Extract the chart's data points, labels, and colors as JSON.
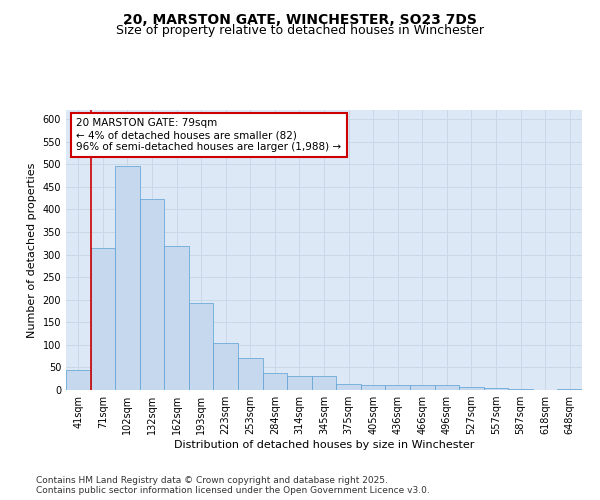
{
  "title_line1": "20, MARSTON GATE, WINCHESTER, SO23 7DS",
  "title_line2": "Size of property relative to detached houses in Winchester",
  "xlabel": "Distribution of detached houses by size in Winchester",
  "ylabel": "Number of detached properties",
  "categories": [
    "41sqm",
    "71sqm",
    "102sqm",
    "132sqm",
    "162sqm",
    "193sqm",
    "223sqm",
    "253sqm",
    "284sqm",
    "314sqm",
    "345sqm",
    "375sqm",
    "405sqm",
    "436sqm",
    "466sqm",
    "496sqm",
    "527sqm",
    "557sqm",
    "587sqm",
    "618sqm",
    "648sqm"
  ],
  "values": [
    45,
    314,
    497,
    422,
    318,
    193,
    105,
    70,
    37,
    31,
    30,
    13,
    11,
    12,
    12,
    10,
    6,
    4,
    2,
    1,
    2
  ],
  "bar_color": "#c5d8ed",
  "bar_edge_color": "#5a9fd4",
  "grid_color": "#c8d8e8",
  "bg_color": "#dce8f5",
  "vline_x": 0.5,
  "vline_color": "#cc0000",
  "annotation_text": "20 MARSTON GATE: 79sqm\n← 4% of detached houses are smaller (82)\n96% of semi-detached houses are larger (1,988) →",
  "annotation_box_color": "#cc0000",
  "ylim": [
    0,
    620
  ],
  "yticks": [
    0,
    50,
    100,
    150,
    200,
    250,
    300,
    350,
    400,
    450,
    500,
    550,
    600
  ],
  "footer_text": "Contains HM Land Registry data © Crown copyright and database right 2025.\nContains public sector information licensed under the Open Government Licence v3.0.",
  "title_fontsize": 10,
  "subtitle_fontsize": 9,
  "axis_label_fontsize": 8,
  "tick_fontsize": 7,
  "annotation_fontsize": 7.5,
  "footer_fontsize": 6.5
}
